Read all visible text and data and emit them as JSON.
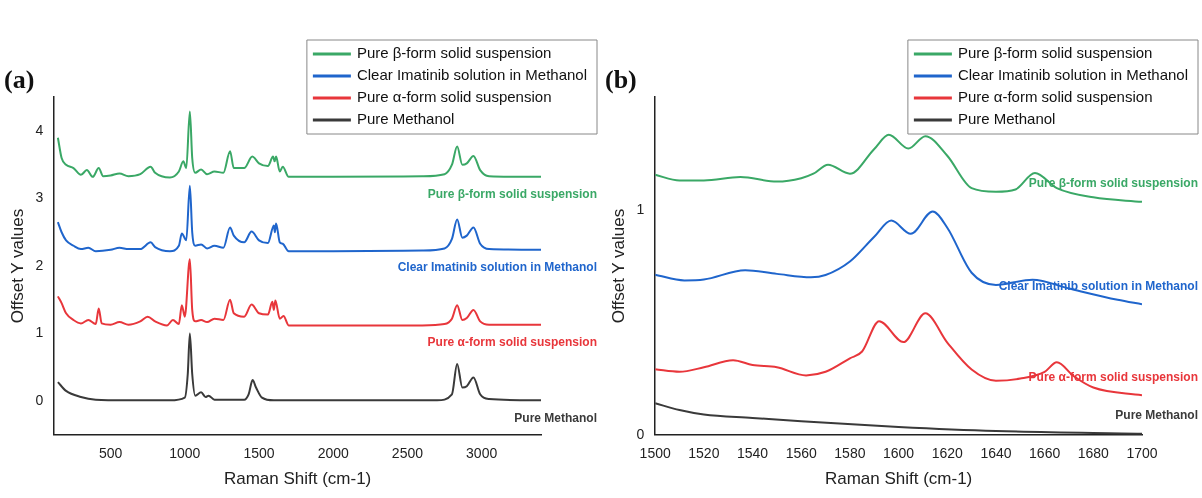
{
  "chart_data": [
    {
      "type": "line",
      "title": "(a)",
      "xlabel": "Raman Shift (cm-1)",
      "ylabel": "Offset Y values",
      "xlim": [
        120,
        3400
      ],
      "xticks": [
        500,
        1000,
        1500,
        2000,
        2500,
        3000
      ],
      "ylim": [
        -0.5,
        4.5
      ],
      "yticks": [
        0,
        1,
        2,
        3,
        4
      ],
      "grid": false,
      "legend": "top right",
      "marker": "none",
      "line_style": "solid",
      "series": [
        {
          "name": "Pure β-form solid suspension",
          "color": "#3aa866",
          "x": [
            145,
            170,
            200,
            250,
            300,
            340,
            380,
            420,
            450,
            500,
            560,
            620,
            700,
            770,
            800,
            900,
            960,
            990,
            1010,
            1034,
            1050,
            1070,
            1110,
            1150,
            1200,
            1260,
            1305,
            1330,
            1400,
            1455,
            1500,
            1560,
            1595,
            1605,
            1615,
            1640,
            1660,
            1700,
            2000,
            2600,
            2750,
            2800,
            2835,
            2870,
            2900,
            2945,
            2990,
            3050,
            3400
          ],
          "values": [
            3.9,
            3.6,
            3.5,
            3.45,
            3.35,
            3.42,
            3.32,
            3.45,
            3.33,
            3.34,
            3.37,
            3.33,
            3.36,
            3.47,
            3.38,
            3.31,
            3.4,
            3.55,
            3.45,
            4.29,
            3.6,
            3.38,
            3.43,
            3.36,
            3.4,
            3.38,
            3.7,
            3.45,
            3.45,
            3.62,
            3.52,
            3.48,
            3.62,
            3.55,
            3.62,
            3.4,
            3.47,
            3.32,
            3.32,
            3.33,
            3.36,
            3.5,
            3.77,
            3.5,
            3.52,
            3.63,
            3.42,
            3.33,
            3.32
          ]
        },
        {
          "name": "Clear Imatinib solution in Methanol",
          "color": "#1f65cc",
          "x": [
            145,
            170,
            200,
            250,
            300,
            350,
            400,
            500,
            560,
            620,
            700,
            770,
            800,
            900,
            960,
            980,
            1010,
            1034,
            1050,
            1070,
            1110,
            1150,
            1200,
            1260,
            1305,
            1330,
            1400,
            1450,
            1500,
            1560,
            1600,
            1607,
            1615,
            1640,
            1660,
            1700,
            2000,
            2600,
            2750,
            2800,
            2835,
            2870,
            2900,
            2945,
            2990,
            3050,
            3400
          ],
          "values": [
            2.65,
            2.5,
            2.38,
            2.3,
            2.25,
            2.27,
            2.22,
            2.24,
            2.27,
            2.25,
            2.25,
            2.35,
            2.28,
            2.22,
            2.3,
            2.48,
            2.38,
            3.19,
            2.5,
            2.3,
            2.32,
            2.26,
            2.3,
            2.27,
            2.57,
            2.45,
            2.35,
            2.51,
            2.38,
            2.34,
            2.6,
            2.5,
            2.63,
            2.35,
            2.33,
            2.22,
            2.22,
            2.23,
            2.26,
            2.4,
            2.69,
            2.42,
            2.45,
            2.57,
            2.33,
            2.25,
            2.24
          ]
        },
        {
          "name": "Pure α-form solid suspension",
          "color": "#e8363b",
          "x": [
            145,
            170,
            200,
            250,
            300,
            350,
            400,
            420,
            440,
            500,
            560,
            620,
            700,
            750,
            800,
            880,
            920,
            960,
            980,
            1000,
            1034,
            1050,
            1070,
            1110,
            1150,
            1200,
            1260,
            1305,
            1330,
            1400,
            1450,
            1500,
            1560,
            1590,
            1600,
            1610,
            1640,
            1665,
            1700,
            2000,
            2600,
            2750,
            2800,
            2835,
            2870,
            2900,
            2945,
            2990,
            3050,
            3400
          ],
          "values": [
            1.55,
            1.45,
            1.3,
            1.2,
            1.15,
            1.2,
            1.14,
            1.37,
            1.15,
            1.13,
            1.17,
            1.13,
            1.18,
            1.25,
            1.18,
            1.12,
            1.2,
            1.14,
            1.42,
            1.25,
            2.1,
            1.35,
            1.18,
            1.2,
            1.17,
            1.22,
            1.2,
            1.5,
            1.3,
            1.25,
            1.43,
            1.3,
            1.28,
            1.47,
            1.35,
            1.49,
            1.22,
            1.26,
            1.12,
            1.12,
            1.12,
            1.14,
            1.22,
            1.42,
            1.2,
            1.23,
            1.35,
            1.18,
            1.13,
            1.13
          ]
        },
        {
          "name": "Pure Methanol",
          "color": "#3a3a3a",
          "x": [
            145,
            200,
            300,
            400,
            600,
            900,
            1000,
            1020,
            1034,
            1050,
            1070,
            1110,
            1140,
            1160,
            1200,
            1400,
            1430,
            1457,
            1480,
            1520,
            1600,
            2700,
            2800,
            2835,
            2870,
            2900,
            2945,
            2990,
            3050,
            3400
          ],
          "values": [
            0.28,
            0.15,
            0.06,
            0.02,
            0.01,
            0.01,
            0.05,
            0.4,
            1.0,
            0.4,
            0.08,
            0.13,
            0.06,
            0.08,
            0.02,
            0.02,
            0.1,
            0.31,
            0.2,
            0.05,
            0.01,
            0.01,
            0.1,
            0.55,
            0.2,
            0.22,
            0.35,
            0.1,
            0.03,
            0.01
          ]
        }
      ],
      "annotations": [
        "Pure β-form solid suspension",
        "Clear Imatinib solution in Methanol",
        "Pure α-form solid suspension",
        "Pure Methanol"
      ]
    },
    {
      "type": "line",
      "title": "(b)",
      "xlabel": "Raman Shift (cm-1)",
      "ylabel": "Offset Y values",
      "xlim": [
        1500,
        1700
      ],
      "xticks": [
        1500,
        1520,
        1540,
        1560,
        1580,
        1600,
        1620,
        1640,
        1660,
        1680,
        1700
      ],
      "ylim": [
        0,
        1.5
      ],
      "yticks": [
        0,
        1
      ],
      "grid": false,
      "legend": "top right",
      "marker": "none",
      "line_style": "solid",
      "series": [
        {
          "name": "Pure β-form solid suspension",
          "color": "#3aa866",
          "x": [
            1500,
            1510,
            1520,
            1535,
            1550,
            1560,
            1565,
            1571,
            1580,
            1590,
            1596,
            1604,
            1611,
            1620,
            1630,
            1640,
            1648,
            1656,
            1665,
            1680,
            1700
          ],
          "values": [
            1.155,
            1.13,
            1.13,
            1.145,
            1.125,
            1.14,
            1.16,
            1.2,
            1.16,
            1.27,
            1.333,
            1.272,
            1.327,
            1.24,
            1.096,
            1.08,
            1.09,
            1.163,
            1.096,
            1.055,
            1.035
          ]
        },
        {
          "name": "Clear Imatinib solution in Methanol",
          "color": "#1f65cc",
          "x": [
            1500,
            1512,
            1520,
            1537,
            1550,
            1564,
            1570,
            1580,
            1590,
            1597,
            1605,
            1614,
            1620,
            1630,
            1640,
            1655,
            1670,
            1690,
            1700
          ],
          "values": [
            0.711,
            0.686,
            0.69,
            0.731,
            0.715,
            0.7,
            0.71,
            0.77,
            0.88,
            0.952,
            0.893,
            0.992,
            0.92,
            0.72,
            0.666,
            0.689,
            0.65,
            0.6,
            0.58
          ]
        },
        {
          "name": "Pure α-form solid suspension",
          "color": "#e8363b",
          "x": [
            1500,
            1510,
            1520,
            1532,
            1540,
            1550,
            1562,
            1570,
            1580,
            1585,
            1592,
            1602,
            1611,
            1620,
            1630,
            1640,
            1650,
            1660,
            1665,
            1672,
            1680,
            1700
          ],
          "values": [
            0.291,
            0.28,
            0.3,
            0.331,
            0.31,
            0.3,
            0.264,
            0.28,
            0.34,
            0.37,
            0.505,
            0.412,
            0.54,
            0.41,
            0.29,
            0.24,
            0.25,
            0.28,
            0.322,
            0.26,
            0.21,
            0.176
          ]
        },
        {
          "name": "Pure Methanol",
          "color": "#3a3a3a",
          "x": [
            1500,
            1510,
            1520,
            1540,
            1560,
            1600,
            1640,
            1700
          ],
          "values": [
            0.14,
            0.11,
            0.09,
            0.075,
            0.06,
            0.035,
            0.017,
            0.005
          ]
        }
      ],
      "annotations": [
        "Pure β-form solid suspension",
        "Clear Imatinib solution in Methanol",
        "Pure α-form solid suspension",
        "Pure Methanol"
      ]
    }
  ]
}
